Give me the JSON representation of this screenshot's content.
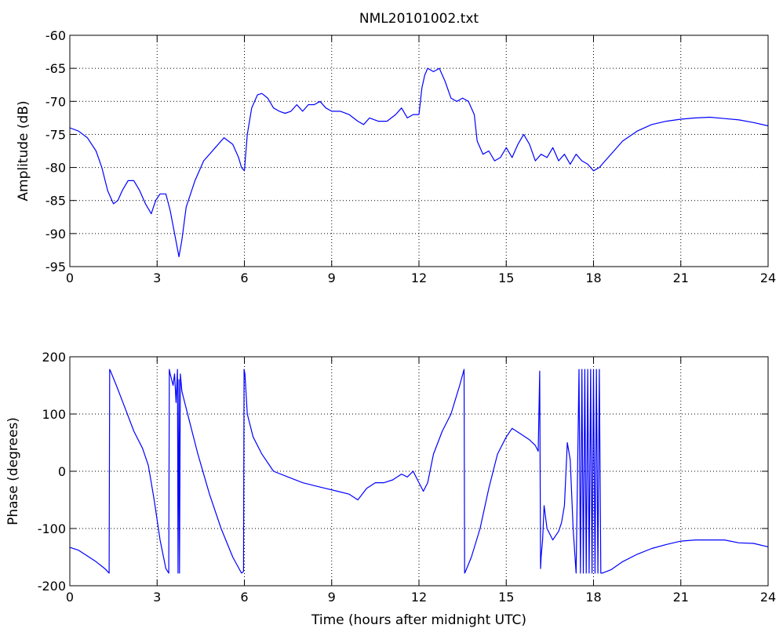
{
  "figure": {
    "title": "NML20101002.txt",
    "line_color": "#0000ff",
    "axes_color": "#000000",
    "background": "#ffffff"
  },
  "chart_data": [
    {
      "type": "line",
      "title": "NML20101002.txt",
      "xlabel": "",
      "ylabel": "Amplitude (dB)",
      "xlim": [
        0,
        24
      ],
      "ylim": [
        -95,
        -60
      ],
      "xticks": [
        0,
        3,
        6,
        9,
        12,
        15,
        18,
        21,
        24
      ],
      "yticks": [
        -95,
        -90,
        -85,
        -80,
        -75,
        -70,
        -65,
        -60
      ],
      "grid": true,
      "series": [
        {
          "color": "#0000ff",
          "x": [
            0,
            0.3,
            0.6,
            0.9,
            1.1,
            1.3,
            1.5,
            1.65,
            1.8,
            2.0,
            2.2,
            2.4,
            2.6,
            2.8,
            2.95,
            3.1,
            3.3,
            3.45,
            3.6,
            3.75,
            3.85,
            4.0,
            4.3,
            4.6,
            5.0,
            5.3,
            5.6,
            5.8,
            5.9,
            6.0,
            6.1,
            6.25,
            6.45,
            6.6,
            6.8,
            7.0,
            7.2,
            7.4,
            7.6,
            7.8,
            8.0,
            8.2,
            8.4,
            8.6,
            8.8,
            9.0,
            9.3,
            9.6,
            9.9,
            10.1,
            10.3,
            10.6,
            10.9,
            11.2,
            11.4,
            11.6,
            11.8,
            12.0,
            12.1,
            12.2,
            12.3,
            12.5,
            12.7,
            12.9,
            13.1,
            13.3,
            13.5,
            13.7,
            13.9,
            14.0,
            14.2,
            14.4,
            14.6,
            14.8,
            15.0,
            15.2,
            15.4,
            15.6,
            15.8,
            16.0,
            16.2,
            16.4,
            16.6,
            16.8,
            17.0,
            17.2,
            17.4,
            17.6,
            17.8,
            18.0,
            18.2,
            18.4,
            18.7,
            19.0,
            19.5,
            20.0,
            20.5,
            21.0,
            21.5,
            22.0,
            22.5,
            23.0,
            23.5,
            24.0
          ],
          "y": [
            -74.0,
            -74.5,
            -75.5,
            -77.5,
            -80.0,
            -83.5,
            -85.5,
            -85.0,
            -83.5,
            -82.0,
            -82.0,
            -83.5,
            -85.5,
            -87.0,
            -85.0,
            -84.0,
            -84.0,
            -86.5,
            -90.0,
            -93.5,
            -91.0,
            -86.0,
            -82.0,
            -79.0,
            -77.0,
            -75.5,
            -76.5,
            -78.5,
            -80.0,
            -80.5,
            -75.0,
            -71.0,
            -69.0,
            -68.8,
            -69.5,
            -71.0,
            -71.5,
            -71.8,
            -71.5,
            -70.5,
            -71.5,
            -70.5,
            -70.5,
            -70.0,
            -71.0,
            -71.5,
            -71.5,
            -72.0,
            -73.0,
            -73.5,
            -72.5,
            -73.0,
            -73.0,
            -72.0,
            -71.0,
            -72.5,
            -72.0,
            -72.0,
            -68.0,
            -66.0,
            -65.0,
            -65.5,
            -65.0,
            -67.0,
            -69.5,
            -70.0,
            -69.5,
            -70.0,
            -72.0,
            -76.0,
            -78.0,
            -77.5,
            -79.0,
            -78.5,
            -77.0,
            -78.5,
            -76.5,
            -75.0,
            -76.5,
            -79.0,
            -78.0,
            -78.5,
            -77.0,
            -79.0,
            -78.0,
            -79.5,
            -78.0,
            -79.0,
            -79.5,
            -80.5,
            -80.0,
            -79.0,
            -77.5,
            -76.0,
            -74.5,
            -73.5,
            -73.0,
            -72.7,
            -72.5,
            -72.4,
            -72.6,
            -72.8,
            -73.2,
            -73.7
          ]
        }
      ]
    },
    {
      "type": "line",
      "title": "",
      "xlabel": "Time (hours after midnight UTC)",
      "ylabel": "Phase (degrees)",
      "xlim": [
        0,
        24
      ],
      "ylim": [
        -200,
        200
      ],
      "xticks": [
        0,
        3,
        6,
        9,
        12,
        15,
        18,
        21,
        24
      ],
      "yticks": [
        -200,
        -100,
        0,
        100,
        200
      ],
      "grid": true,
      "series": [
        {
          "color": "#0000ff",
          "x": [
            0,
            0.3,
            0.6,
            0.9,
            1.2,
            1.35,
            1.37,
            1.4,
            1.6,
            1.9,
            2.2,
            2.5,
            2.7,
            2.9,
            3.1,
            3.3,
            3.4,
            3.42,
            3.45,
            3.55,
            3.6,
            3.65,
            3.7,
            3.72,
            3.75,
            3.77,
            3.8,
            3.85,
            3.9,
            4.1,
            4.4,
            4.8,
            5.2,
            5.6,
            5.9,
            5.97,
            5.99,
            6.02,
            6.1,
            6.3,
            6.6,
            7.0,
            7.5,
            8.0,
            8.4,
            8.8,
            9.2,
            9.6,
            9.9,
            10.2,
            10.5,
            10.8,
            11.1,
            11.4,
            11.6,
            11.8,
            12.0,
            12.15,
            12.3,
            12.5,
            12.8,
            13.1,
            13.4,
            13.55,
            13.57,
            13.6,
            13.8,
            14.1,
            14.4,
            14.7,
            15.0,
            15.2,
            15.5,
            15.8,
            16.0,
            16.1,
            16.15,
            16.18,
            16.2,
            16.25,
            16.3,
            16.4,
            16.6,
            16.8,
            16.9,
            17.0,
            17.1,
            17.2,
            17.3,
            17.4,
            17.5,
            17.55,
            17.6,
            17.65,
            17.7,
            17.75,
            17.8,
            17.85,
            17.9,
            17.95,
            18.0,
            18.05,
            18.1,
            18.15,
            18.2,
            18.25,
            18.3,
            18.6,
            19.0,
            19.5,
            20.0,
            20.5,
            21.0,
            21.5,
            22.0,
            22.5,
            23.0,
            23.5,
            24.0
          ],
          "y": [
            -133,
            -138,
            -148,
            -158,
            -170,
            -178,
            178,
            175,
            150,
            110,
            70,
            40,
            10,
            -50,
            -120,
            -170,
            -178,
            178,
            170,
            150,
            170,
            120,
            178,
            -178,
            160,
            -178,
            170,
            140,
            130,
            90,
            30,
            -40,
            -100,
            -150,
            -178,
            -175,
            178,
            170,
            100,
            60,
            30,
            0,
            -10,
            -20,
            -25,
            -30,
            -35,
            -40,
            -50,
            -30,
            -20,
            -20,
            -15,
            -5,
            -10,
            0,
            -20,
            -35,
            -20,
            30,
            70,
            100,
            150,
            178,
            -178,
            -175,
            -150,
            -100,
            -30,
            30,
            60,
            75,
            65,
            55,
            45,
            35,
            175,
            -170,
            -150,
            -120,
            -60,
            -100,
            -120,
            -105,
            -90,
            -60,
            50,
            20,
            -100,
            -178,
            178,
            -178,
            178,
            -178,
            178,
            -178,
            178,
            -178,
            178,
            -178,
            178,
            -178,
            178,
            -178,
            178,
            -178,
            -178,
            -172,
            -158,
            -145,
            -135,
            -128,
            -122,
            -120,
            -120,
            -120,
            -125,
            -126,
            -132
          ]
        }
      ]
    }
  ]
}
